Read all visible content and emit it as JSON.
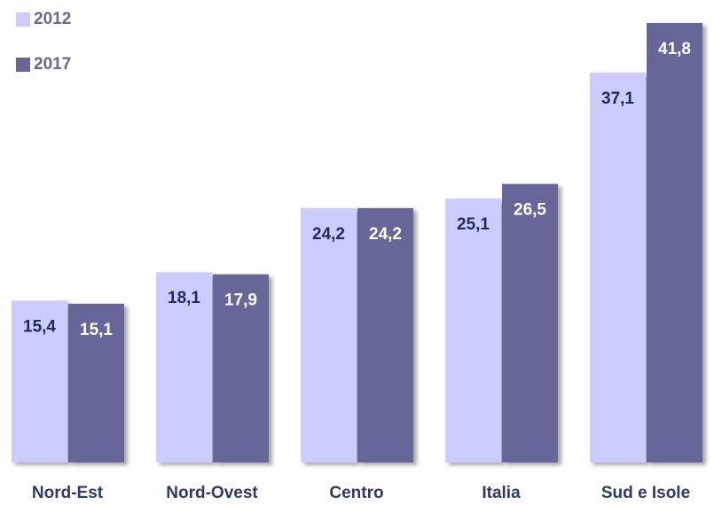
{
  "chart_data": {
    "type": "bar",
    "categories": [
      "Nord-Est",
      "Nord-Ovest",
      "Centro",
      "Italia",
      "Sud e Isole"
    ],
    "series": [
      {
        "name": "2012",
        "color": "#ccccff",
        "values": [
          15.4,
          18.1,
          24.2,
          25.1,
          37.1
        ],
        "value_labels": [
          "15,4",
          "18,1",
          "24,2",
          "25,1",
          "37,1"
        ]
      },
      {
        "name": "2017",
        "color": "#666699",
        "values": [
          15.1,
          17.9,
          24.2,
          26.5,
          41.8
        ],
        "value_labels": [
          "15,1",
          "17,9",
          "24,2",
          "26,5",
          "41,8"
        ]
      }
    ],
    "legend": "top-left"
  }
}
